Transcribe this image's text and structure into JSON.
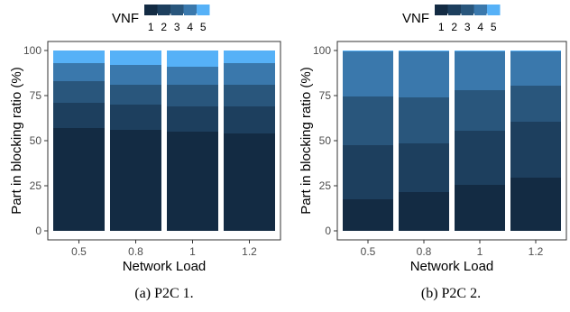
{
  "colors": [
    "#132b43",
    "#1d3f5e",
    "#29567c",
    "#3a78ac",
    "#56b1f7"
  ],
  "chart_data": [
    {
      "type": "bar",
      "stacked": true,
      "caption": "(a) P2C 1.",
      "xlabel": "Network Load",
      "ylabel": "Part in blocking ratio (%)",
      "ylim": [
        0,
        100
      ],
      "yticks": [
        0,
        25,
        50,
        75,
        100
      ],
      "categories": [
        "0.5",
        "0.8",
        "1",
        "1.2"
      ],
      "legend": {
        "title": "VNF",
        "labels": [
          "1",
          "2",
          "3",
          "4",
          "5"
        ],
        "placement": "top"
      },
      "series": [
        {
          "name": "1",
          "values": [
            57,
            56,
            55,
            54
          ]
        },
        {
          "name": "2",
          "values": [
            14,
            14,
            14,
            15
          ]
        },
        {
          "name": "3",
          "values": [
            12,
            11,
            12,
            12
          ]
        },
        {
          "name": "4",
          "values": [
            10,
            11,
            10,
            12
          ]
        },
        {
          "name": "5",
          "values": [
            7,
            8,
            9,
            7
          ]
        }
      ]
    },
    {
      "type": "bar",
      "stacked": true,
      "caption": "(b) P2C 2.",
      "xlabel": "Network Load",
      "ylabel": "Part in blocking ratio (%)",
      "ylim": [
        0,
        100
      ],
      "yticks": [
        0,
        25,
        50,
        75,
        100
      ],
      "categories": [
        "0.5",
        "0.8",
        "1",
        "1.2"
      ],
      "legend": {
        "title": "VNF",
        "labels": [
          "1",
          "2",
          "3",
          "4",
          "5"
        ],
        "placement": "top"
      },
      "series": [
        {
          "name": "1",
          "values": [
            17.5,
            21.5,
            25.5,
            29.5
          ]
        },
        {
          "name": "2",
          "values": [
            30,
            27,
            30,
            31
          ]
        },
        {
          "name": "3",
          "values": [
            27,
            25.5,
            22.5,
            20
          ]
        },
        {
          "name": "4",
          "values": [
            25,
            25.5,
            21.5,
            19
          ]
        },
        {
          "name": "5",
          "values": [
            0.5,
            0.5,
            0.5,
            0.5
          ]
        }
      ]
    }
  ]
}
